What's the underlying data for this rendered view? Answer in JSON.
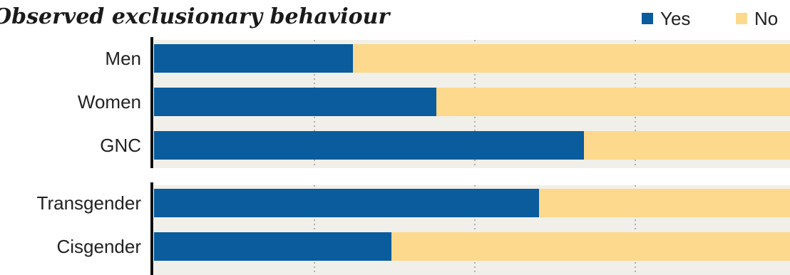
{
  "chart_data": {
    "type": "bar",
    "orientation": "horizontal",
    "stacked": true,
    "title": "Observed exclusionary behaviour",
    "xlabel": "",
    "ylabel": "",
    "xlim": [
      0,
      100
    ],
    "groups": [
      [
        "Men",
        "Women",
        "GNC"
      ],
      [
        "Transgender",
        "Cisgender"
      ]
    ],
    "categories": [
      "Men",
      "Women",
      "GNC",
      "Transgender",
      "Cisgender"
    ],
    "series": [
      {
        "name": "Yes",
        "color": "#0a5c9c",
        "values": [
          31,
          44,
          67,
          60,
          37
        ]
      },
      {
        "name": "No",
        "color": "#fcd98c",
        "values": [
          69,
          56,
          33,
          40,
          63
        ]
      }
    ],
    "gridlines": [
      25,
      50,
      75
    ],
    "grid": true,
    "legend_position": "top-right"
  }
}
